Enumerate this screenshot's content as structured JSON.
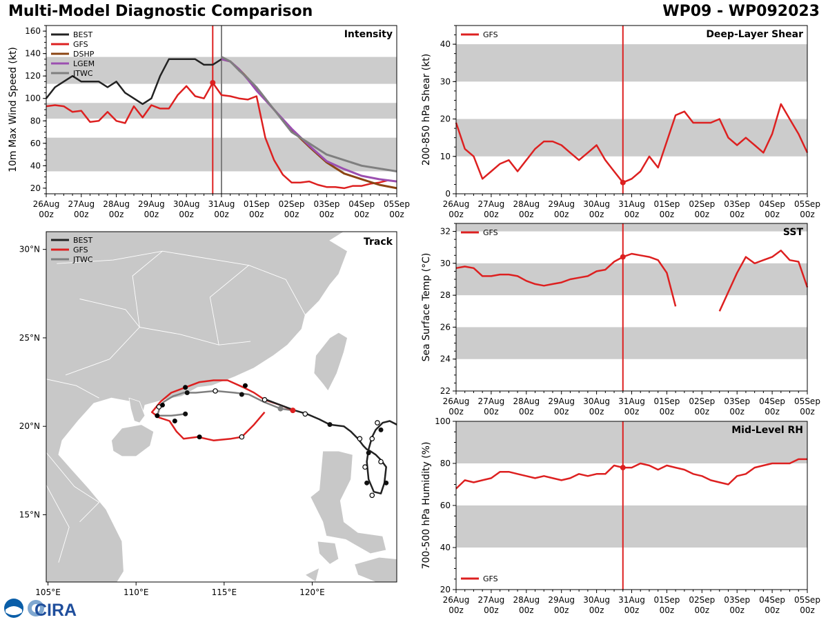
{
  "header": {
    "title": "Multi-Model Diagnostic Comparison",
    "storm_id": "WP09 - WP092023"
  },
  "logo": {
    "text": "CIRA",
    "colors": [
      "#0a5ea8",
      "#1f4e9c"
    ]
  },
  "colors": {
    "BEST": "#222222",
    "GFS": "#dd2020",
    "DSHP": "#8b4513",
    "LGEM": "#9b4fb0",
    "JTWC": "#7f7f7f",
    "band": "#cccccc",
    "marker_gray": "#808080"
  },
  "time_ticks": [
    [
      "26Aug",
      "00z"
    ],
    [
      "27Aug",
      "00z"
    ],
    [
      "28Aug",
      "00z"
    ],
    [
      "29Aug",
      "00z"
    ],
    [
      "30Aug",
      "00z"
    ],
    [
      "31Aug",
      "00z"
    ],
    [
      "01Sep",
      "00z"
    ],
    [
      "02Sep",
      "00z"
    ],
    [
      "03Sep",
      "00z"
    ],
    [
      "04Sep",
      "00z"
    ],
    [
      "05Sep",
      "00z"
    ]
  ],
  "chart_data": [
    {
      "id": "intensity",
      "type": "line",
      "title": "Intensity",
      "ylabel": "10m Max Wind Speed (kt)",
      "x_unit": "days since 26Aug 00z",
      "xlim": [
        0,
        10
      ],
      "ylim": [
        15,
        165
      ],
      "yticks": [
        20,
        40,
        60,
        80,
        100,
        120,
        140,
        160
      ],
      "bands": [
        [
          35,
          65
        ],
        [
          82,
          96
        ],
        [
          113,
          137
        ]
      ],
      "vlines": [
        {
          "x": 4.75,
          "color": "GFS"
        },
        {
          "x": 5.0,
          "color": "JTWC"
        }
      ],
      "legend": [
        "BEST",
        "GFS",
        "DSHP",
        "LGEM",
        "JTWC"
      ],
      "legend_position": "top-left",
      "series": [
        {
          "name": "BEST",
          "x": [
            0,
            0.25,
            0.5,
            0.75,
            1.0,
            1.25,
            1.5,
            1.75,
            2.0,
            2.25,
            2.5,
            2.75,
            3.0,
            3.25,
            3.5,
            3.75,
            4.0,
            4.25,
            4.5,
            4.75,
            5.0
          ],
          "y": [
            100,
            110,
            115,
            120,
            115,
            115,
            115,
            110,
            115,
            105,
            100,
            95,
            100,
            120,
            135,
            135,
            135,
            135,
            130,
            130,
            135
          ]
        },
        {
          "name": "GFS",
          "x": [
            0,
            0.25,
            0.5,
            0.75,
            1.0,
            1.25,
            1.5,
            1.75,
            2.0,
            2.25,
            2.5,
            2.75,
            3.0,
            3.25,
            3.5,
            3.75,
            4.0,
            4.25,
            4.5,
            4.75,
            5.0,
            5.25,
            5.5,
            5.75,
            6.0,
            6.25,
            6.5,
            6.75,
            7.0,
            7.25,
            7.5,
            7.75,
            8.0,
            8.25,
            8.5,
            8.75,
            9.0,
            9.25,
            9.5,
            9.75,
            10.0
          ],
          "y": [
            93,
            94,
            93,
            88,
            89,
            79,
            80,
            88,
            80,
            78,
            93,
            83,
            94,
            91,
            91,
            103,
            111,
            102,
            100,
            114,
            103,
            102,
            100,
            99,
            102,
            65,
            45,
            32,
            25,
            25,
            26,
            23,
            21,
            21,
            20,
            22,
            22,
            24,
            25,
            27,
            26
          ],
          "marker": {
            "x": 4.75,
            "y": 114
          }
        },
        {
          "name": "DSHP",
          "x": [
            5.0,
            5.25,
            5.5,
            5.75,
            6.0,
            6.5,
            7.0,
            7.5,
            8.0,
            8.5,
            9.0,
            9.5,
            10.0
          ],
          "y": [
            135,
            133,
            126,
            118,
            108,
            90,
            72,
            57,
            43,
            33,
            28,
            23,
            20
          ]
        },
        {
          "name": "LGEM",
          "x": [
            5.0,
            5.25,
            5.5,
            5.75,
            6.0,
            6.5,
            7.0,
            7.5,
            8.0,
            8.5,
            9.0,
            9.5,
            10.0
          ],
          "y": [
            135,
            133,
            126,
            117,
            107,
            90,
            73,
            58,
            44,
            37,
            31,
            28,
            26
          ]
        },
        {
          "name": "JTWC",
          "x": [
            5.0,
            5.25,
            5.5,
            5.75,
            6.0,
            6.5,
            7.0,
            7.5,
            8.0,
            9.0,
            10.0
          ],
          "y": [
            137,
            133,
            125,
            118,
            110,
            90,
            70,
            60,
            50,
            40,
            35
          ]
        }
      ]
    },
    {
      "id": "shear",
      "type": "line",
      "title": "Deep-Layer Shear",
      "ylabel": "200-850 hPa Shear (kt)",
      "x_unit": "days since 26Aug 00z",
      "xlim": [
        0,
        10
      ],
      "ylim": [
        0,
        45
      ],
      "yticks": [
        0,
        10,
        20,
        30,
        40
      ],
      "bands": [
        [
          10,
          20
        ],
        [
          30,
          40
        ]
      ],
      "vlines": [
        {
          "x": 4.75,
          "color": "GFS"
        }
      ],
      "legend": [
        "GFS"
      ],
      "legend_position": "top-left",
      "series": [
        {
          "name": "GFS",
          "x": [
            0,
            0.25,
            0.5,
            0.75,
            1.0,
            1.25,
            1.5,
            1.75,
            2.0,
            2.25,
            2.5,
            2.75,
            3.0,
            3.25,
            3.5,
            3.75,
            4.0,
            4.25,
            4.5,
            4.75,
            5.0,
            5.25,
            5.5,
            5.75,
            6.0,
            6.25,
            6.5,
            6.75,
            7.0,
            7.25,
            7.5,
            7.75,
            8.0,
            8.25,
            8.5,
            8.75,
            9.0,
            9.25,
            9.5,
            9.75,
            10.0
          ],
          "y": [
            19,
            12,
            10,
            4,
            6,
            8,
            9,
            6,
            9,
            12,
            14,
            14,
            13,
            11,
            9,
            11,
            13,
            9,
            6,
            3,
            4,
            6,
            10,
            7,
            14,
            21,
            22,
            19,
            19,
            19,
            20,
            15,
            13,
            15,
            13,
            11,
            16,
            24,
            20,
            16,
            11
          ],
          "marker": {
            "x": 4.75,
            "y": 3
          }
        }
      ]
    },
    {
      "id": "sst",
      "type": "line",
      "title": "SST",
      "ylabel": "Sea Surface Temp (°C)",
      "x_unit": "days since 26Aug 00z",
      "xlim": [
        0,
        10
      ],
      "ylim": [
        22,
        32.5
      ],
      "yticks": [
        22,
        24,
        26,
        28,
        30,
        32
      ],
      "bands": [
        [
          24,
          26
        ],
        [
          28,
          30
        ],
        [
          32,
          32.5
        ]
      ],
      "vlines": [
        {
          "x": 4.75,
          "color": "GFS"
        }
      ],
      "legend": [
        "GFS"
      ],
      "legend_position": "top-left",
      "series": [
        {
          "name": "GFS",
          "x": [
            0,
            0.25,
            0.5,
            0.75,
            1.0,
            1.25,
            1.5,
            1.75,
            2.0,
            2.25,
            2.5,
            2.75,
            3.0,
            3.25,
            3.5,
            3.75,
            4.0,
            4.25,
            4.5,
            4.75,
            5.0,
            5.25,
            5.5,
            5.75,
            6.0,
            6.25
          ],
          "y": [
            29.7,
            29.8,
            29.7,
            29.2,
            29.2,
            29.3,
            29.3,
            29.2,
            28.9,
            28.7,
            28.6,
            28.7,
            28.8,
            29.0,
            29.1,
            29.2,
            29.5,
            29.6,
            30.1,
            30.4,
            30.6,
            30.5,
            30.4,
            30.2,
            29.4,
            27.3
          ],
          "marker": {
            "x": 4.75,
            "y": 30.4
          }
        },
        {
          "name": "GFS",
          "x": [
            7.5,
            7.75,
            8.0,
            8.25,
            8.5,
            8.75,
            9.0,
            9.25,
            9.5,
            9.75,
            10.0
          ],
          "y": [
            27.0,
            28.2,
            29.4,
            30.4,
            30.0,
            30.2,
            30.4,
            30.8,
            30.2,
            30.1,
            28.5
          ]
        }
      ]
    },
    {
      "id": "rh",
      "type": "line",
      "title": "Mid-Level RH",
      "ylabel": "700-500 hPa Humidity (%)",
      "x_unit": "days since 26Aug 00z",
      "xlim": [
        0,
        10
      ],
      "ylim": [
        20,
        100
      ],
      "yticks": [
        20,
        40,
        60,
        80,
        100
      ],
      "bands": [
        [
          40,
          60
        ],
        [
          80,
          100
        ]
      ],
      "vlines": [
        {
          "x": 4.75,
          "color": "GFS"
        }
      ],
      "legend": [
        "GFS"
      ],
      "legend_position": "bottom-left",
      "series": [
        {
          "name": "GFS",
          "x": [
            0,
            0.25,
            0.5,
            0.75,
            1.0,
            1.25,
            1.5,
            1.75,
            2.0,
            2.25,
            2.5,
            2.75,
            3.0,
            3.25,
            3.5,
            3.75,
            4.0,
            4.25,
            4.5,
            4.75,
            5.0,
            5.25,
            5.5,
            5.75,
            6.0,
            6.25,
            6.5,
            6.75,
            7.0,
            7.25,
            7.5,
            7.75,
            8.0,
            8.25,
            8.5,
            8.75,
            9.0,
            9.25,
            9.5,
            9.75,
            10.0
          ],
          "y": [
            68,
            72,
            71,
            72,
            73,
            76,
            76,
            75,
            74,
            73,
            74,
            73,
            72,
            73,
            75,
            74,
            75,
            75,
            79,
            78,
            78,
            80,
            79,
            77,
            79,
            78,
            77,
            75,
            74,
            72,
            71,
            70,
            74,
            75,
            78,
            79,
            80,
            80,
            80,
            82,
            82
          ],
          "marker": {
            "x": 4.75,
            "y": 78
          }
        }
      ]
    },
    {
      "id": "track",
      "type": "scatter",
      "title": "Track",
      "xlim": [
        104.9,
        124.8
      ],
      "ylim": [
        11.2,
        31
      ],
      "xticks": [
        105,
        110,
        115,
        120
      ],
      "xtick_labels": [
        "105°E",
        "110°E",
        "115°E",
        "120°E"
      ],
      "yticks": [
        15,
        20,
        25,
        30
      ],
      "ytick_labels": [
        "15°N",
        "20°N",
        "25°N",
        "30°N"
      ],
      "legend": [
        "BEST",
        "GFS",
        "JTWC"
      ],
      "legend_position": "top-left",
      "series": [
        {
          "name": "BEST",
          "lon": [
            124.8,
            124.4,
            124.0,
            123.6,
            123.4,
            123.2,
            123.1,
            123.2,
            123.5,
            123.9,
            124.1,
            124.2,
            123.9,
            123.6,
            123.3,
            123.1,
            122.9,
            122.6,
            122.2,
            121.8,
            121.0,
            120.4,
            119.7,
            119.0,
            118.2,
            117.4
          ],
          "lat": [
            20.1,
            20.3,
            20.2,
            19.8,
            19.4,
            18.7,
            18.0,
            17.0,
            16.3,
            16.2,
            16.8,
            17.7,
            18.1,
            18.4,
            18.6,
            18.7,
            18.9,
            19.3,
            19.7,
            20.0,
            20.1,
            20.4,
            20.7,
            20.9,
            21.2,
            21.5
          ],
          "markers_filled": [
            [
              123.9,
              19.8
            ],
            [
              123.2,
              18.5
            ],
            [
              123.1,
              16.8
            ],
            [
              124.2,
              16.8
            ],
            [
              121.0,
              20.1
            ]
          ],
          "markers_open": [
            [
              123.7,
              20.2
            ],
            [
              123.4,
              19.3
            ],
            [
              122.7,
              19.3
            ],
            [
              123.0,
              17.7
            ],
            [
              123.4,
              16.1
            ],
            [
              123.9,
              18.0
            ],
            [
              119.6,
              20.7
            ]
          ]
        },
        {
          "name": "GFS",
          "lon": [
            118.9,
            118.2,
            117.3,
            116.7,
            116.1,
            115.2,
            114.4,
            113.6,
            112.8,
            112.0,
            111.4,
            110.9,
            111.3,
            111.9,
            112.3,
            112.7,
            113.5,
            114.4,
            115.4,
            116.0,
            116.7,
            117.3
          ],
          "lat": [
            20.9,
            21.2,
            21.5,
            21.9,
            22.2,
            22.6,
            22.6,
            22.5,
            22.2,
            21.9,
            21.4,
            20.8,
            20.5,
            20.3,
            19.7,
            19.3,
            19.4,
            19.2,
            19.3,
            19.4,
            20.1,
            20.8
          ],
          "markers_filled": [
            [
              116.2,
              22.3
            ],
            [
              112.8,
              22.2
            ],
            [
              111.5,
              21.2
            ],
            [
              111.2,
              20.6
            ],
            [
              112.2,
              20.3
            ],
            [
              113.6,
              19.4
            ]
          ],
          "markers_open": [
            [
              116.0,
              19.4
            ]
          ],
          "marker_current": [
            118.9,
            20.9
          ]
        },
        {
          "name": "JTWC",
          "lon": [
            118.9,
            118.2,
            117.2,
            116.4,
            115.6,
            114.5,
            113.4,
            112.7,
            112.1,
            111.6,
            111.4,
            111.2,
            111.5,
            112.0,
            112.8
          ],
          "lat": [
            20.9,
            21.0,
            21.4,
            21.8,
            21.9,
            22.0,
            21.9,
            21.9,
            21.7,
            21.4,
            21.2,
            20.6,
            20.6,
            20.6,
            20.7
          ],
          "markers_filled": [
            [
              116.0,
              21.8
            ],
            [
              112.9,
              21.9
            ],
            [
              112.8,
              20.7
            ]
          ],
          "markers_open": [
            [
              117.3,
              21.5
            ],
            [
              114.5,
              22.0
            ],
            [
              111.3,
              21.1
            ]
          ],
          "markers_gray": [
            [
              118.2,
              21.0
            ]
          ]
        }
      ]
    }
  ]
}
